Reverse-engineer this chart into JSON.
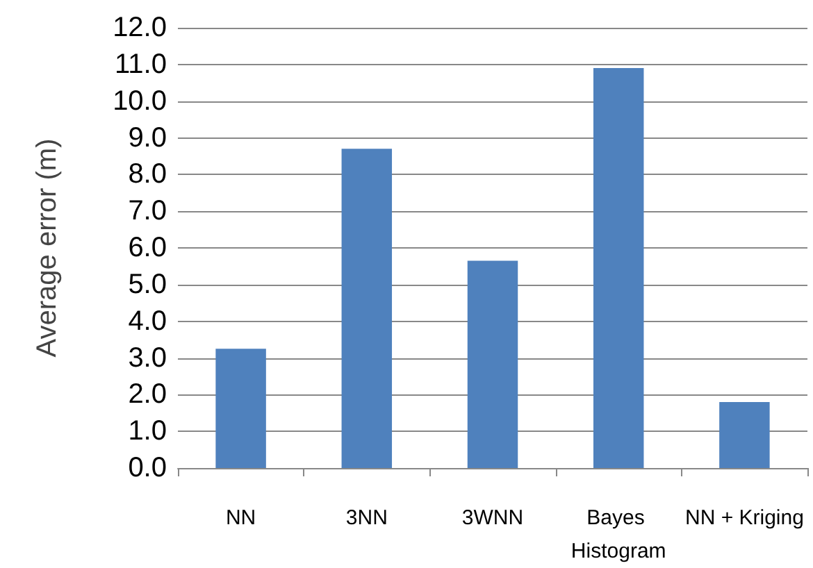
{
  "chart_data": {
    "type": "bar",
    "ylabel": "Average error (m)",
    "categories": [
      "NN",
      "3NN",
      "3WNN",
      "Bayes Histogram",
      "NN + Kriging"
    ],
    "values": [
      3.25,
      8.7,
      5.65,
      10.9,
      1.8
    ],
    "color": "#4f81bd",
    "ylim": [
      0,
      12
    ],
    "yticks": [
      {
        "value": 0,
        "label": "0.0"
      },
      {
        "value": 1,
        "label": "1.0"
      },
      {
        "value": 2,
        "label": "2.0"
      },
      {
        "value": 3,
        "label": "3.0"
      },
      {
        "value": 4,
        "label": "4.0"
      },
      {
        "value": 5,
        "label": "5.0"
      },
      {
        "value": 6,
        "label": "6.0"
      },
      {
        "value": 7,
        "label": "7.0"
      },
      {
        "value": 8,
        "label": "8.0"
      },
      {
        "value": 9,
        "label": "9.0"
      },
      {
        "value": 10,
        "label": "10.0"
      },
      {
        "value": 11,
        "label": "11.0"
      },
      {
        "value": 12,
        "label": "12.0"
      }
    ],
    "grid": "y"
  }
}
